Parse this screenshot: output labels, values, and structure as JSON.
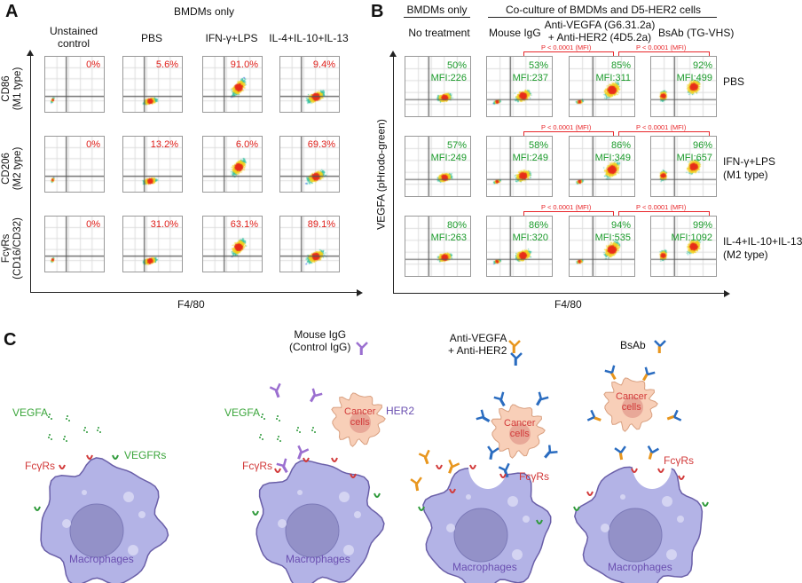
{
  "panelA": {
    "label": "A",
    "header": "BMDMs only",
    "columns": [
      "Unstained\ncontrol",
      "PBS",
      "IFN-γ+LPS",
      "IL-4+IL-10+IL-13"
    ],
    "rows": [
      {
        "label": "CD86\n(M1 type)",
        "values": [
          "0%",
          "5.6%",
          "91.0%",
          "9.4%"
        ]
      },
      {
        "label": "CD206\n(M2 type)",
        "values": [
          "0%",
          "13.2%",
          "6.0%",
          "69.3%"
        ]
      },
      {
        "label": "FcγRs\n(CD16/CD32)",
        "values": [
          "0%",
          "31.0%",
          "63.1%",
          "89.1%"
        ]
      }
    ],
    "xlabel": "F4/80",
    "value_color": "#e0201b"
  },
  "panelB": {
    "label": "B",
    "header_left": "BMDMs only",
    "header_right": "Co-culture of BMDMs and D5-HER2 cells",
    "columns": [
      "No treatment",
      "Mouse IgG",
      "Anti-VEGFA (G6.31.2a)\n+ Anti-HER2 (4D5.2a)",
      "BsAb (TG-VHS)"
    ],
    "rows": [
      {
        "label": "PBS",
        "values": [
          [
            "50%",
            "MFI:226"
          ],
          [
            "53%",
            "MFI:237"
          ],
          [
            "85%",
            "MFI:311"
          ],
          [
            "92%",
            "MFI:499"
          ]
        ]
      },
      {
        "label": "IFN-γ+LPS\n(M1 type)",
        "values": [
          [
            "57%",
            "MFI:249"
          ],
          [
            "58%",
            "MFI:249"
          ],
          [
            "86%",
            "MFI:349"
          ],
          [
            "96%",
            "MFI:657"
          ]
        ]
      },
      {
        "label": "IL-4+IL-10+IL-13\n(M2 type)",
        "values": [
          [
            "80%",
            "MFI:263"
          ],
          [
            "86%",
            "MFI:320"
          ],
          [
            "94%",
            "MFI:535"
          ],
          [
            "99%",
            "MFI:1092"
          ]
        ]
      }
    ],
    "pvalue": "P < 0.0001 (MFI)",
    "ylabel": "VEGFA (pHrodo-green)",
    "xlabel": "F4/80",
    "value_color": "#1a9a2a",
    "bracket_color": "#e8262a"
  },
  "panelC": {
    "label": "C",
    "legend_igg": "Mouse IgG\n(Control IgG)",
    "legend_combo": "Anti-VEGFA\n+ Anti-HER2",
    "legend_bsab": "BsAb",
    "vegfa": "VEGFA",
    "vegfrs": "VEGFRs",
    "fcgrs": "FcγRs",
    "her2": "HER2",
    "cancer": "Cancer\ncells",
    "macrophages": "Macrophages",
    "colors": {
      "macrophage": "#b3b3e6",
      "nucleus": "#9391c8",
      "cancer": "#f8cfb8",
      "igg": "#9b6fd0",
      "anti_vegfa": "#e8961e",
      "anti_her2": "#2a6cc0",
      "fcgr": "#d23a3a",
      "vegfr": "#2e9a3a"
    }
  }
}
